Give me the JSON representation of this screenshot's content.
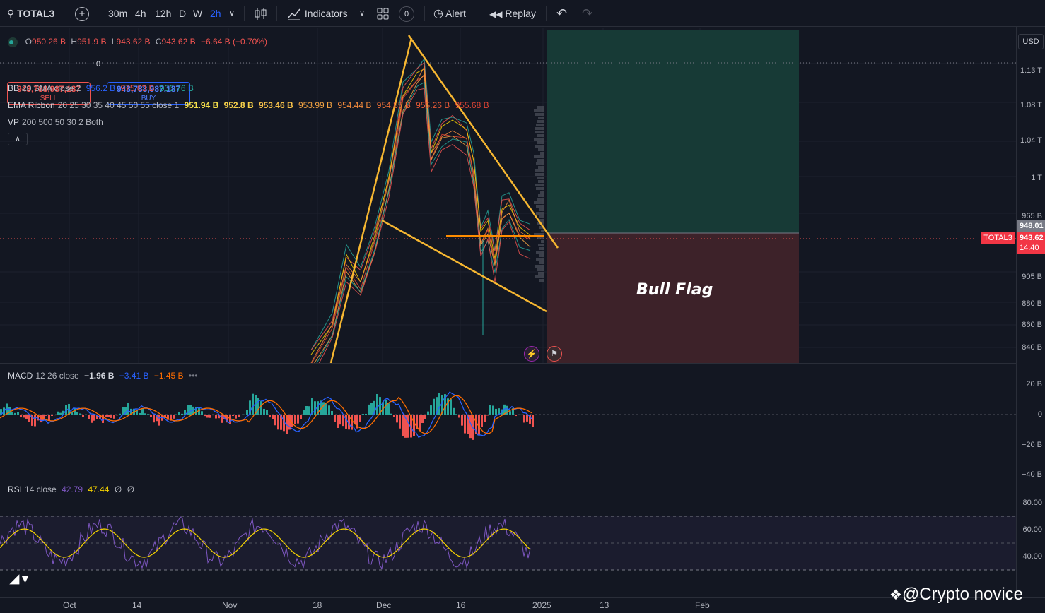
{
  "toolbar": {
    "symbol": "TOTAL3",
    "intervals": [
      "30m",
      "4h",
      "12h",
      "D",
      "W",
      "2h"
    ],
    "active_interval": "2h",
    "indicators_label": "Indicators",
    "layout_count": "0",
    "alert_label": "Alert",
    "replay_label": "Replay"
  },
  "ohlc": {
    "o_label": "O",
    "o": "950.26 B",
    "h_label": "H",
    "h": "951.9 B",
    "l_label": "L",
    "l": "943.62 B",
    "c_label": "C",
    "c": "943.62 B",
    "change": "−6.64 B (−0.70%)"
  },
  "trade": {
    "sell_price": "943,788,987,187",
    "sell_label": "SELL",
    "spread": "0",
    "buy_price": "943,788,987,187",
    "buy_label": "BUY"
  },
  "indicators": {
    "bb": {
      "name": "BB",
      "params": "20 SMA close 2",
      "v1": "956.2 B",
      "v2": "975.63 B",
      "v3": "936.76 B"
    },
    "ema": {
      "name": "EMA Ribbon",
      "params": "20 25 30 35 40 45 50 55 close 1",
      "values": [
        "951.94 B",
        "952.8 B",
        "953.46 B",
        "953.99 B",
        "954.44 B",
        "954.85 B",
        "955.26 B",
        "955.68 B"
      ]
    },
    "vp": {
      "name": "VP",
      "params": "200 500 50 30 2 Both"
    },
    "macd": {
      "name": "MACD",
      "params": "12 26 close",
      "v1": "−1.96 B",
      "v2": "−3.41 B",
      "v3": "−1.45 B"
    },
    "rsi": {
      "name": "RSI",
      "params": "14 close",
      "v1": "42.79",
      "v2": "47.44",
      "v3": "∅",
      "v4": "∅"
    }
  },
  "annotation": "Bull Flag",
  "price_axis": {
    "currency": "USD",
    "labels": [
      "1.13 T",
      "1.08 T",
      "1.04 T",
      "1 T",
      "965 B",
      "905 B",
      "880 B",
      "860 B",
      "840 B"
    ],
    "target_price": "948.01",
    "current_price": "943.62",
    "countdown": "14:40",
    "symbol_tag": "TOTAL3"
  },
  "macd_axis": [
    "20 B",
    "0",
    "−20 B",
    "−40 B"
  ],
  "rsi_axis": [
    "80.00",
    "60.00",
    "40.00"
  ],
  "time_axis": [
    "Oct",
    "14",
    "Nov",
    "18",
    "Dec",
    "16",
    "2025",
    "13",
    "Feb"
  ],
  "watermark": "@Crypto novice",
  "colors": {
    "background": "#131722",
    "up": "#26a69a",
    "down": "#ef5350",
    "accent": "#2962ff",
    "pattern_line": "#f7b731",
    "profit_zone": "#173a36",
    "loss_zone": "#3d2229",
    "macd_line": "#2962ff",
    "signal_line": "#ff6d00",
    "rsi_line": "#7e57c2",
    "rsi_ma": "#f7d400"
  }
}
